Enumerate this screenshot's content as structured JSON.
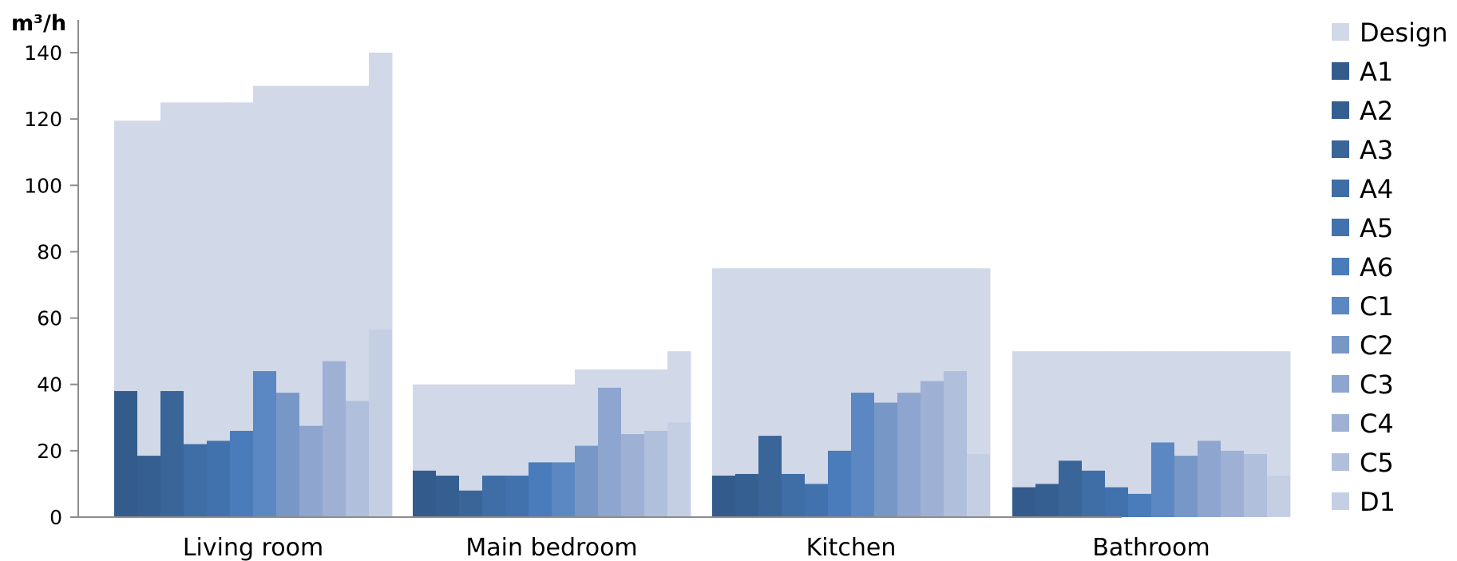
{
  "chart_data": {
    "type": "bar",
    "y_unit": "m³/h",
    "ylim": [
      0,
      140
    ],
    "yticks": [
      "0",
      "20",
      "40",
      "60",
      "80",
      "100",
      "120",
      "140"
    ],
    "grid": false,
    "legend_position": "right",
    "categories": [
      "Living room",
      "Main bedroom",
      "Kitchen",
      "Bathroom"
    ],
    "design": {
      "name": "Design",
      "color": "#D1D8E7",
      "values": [
        [
          119.5,
          119.5,
          125,
          125,
          125,
          125,
          130,
          130,
          130,
          130,
          130,
          140
        ],
        [
          40,
          40,
          40,
          40,
          40,
          40,
          40,
          44.5,
          44.5,
          44.5,
          44.5,
          50
        ],
        [
          75,
          75,
          75,
          75,
          75,
          75,
          75,
          75,
          75,
          75,
          75,
          75
        ],
        [
          50,
          50,
          50,
          50,
          50,
          50,
          50,
          50,
          50,
          50,
          50,
          50
        ]
      ]
    },
    "series": [
      {
        "name": "A1",
        "color": "#335C8C",
        "values": [
          38,
          14,
          12.5,
          9
        ]
      },
      {
        "name": "A2",
        "color": "#365F91",
        "values": [
          18.5,
          12.5,
          13,
          10
        ]
      },
      {
        "name": "A3",
        "color": "#396598",
        "values": [
          38,
          8,
          24.5,
          17
        ]
      },
      {
        "name": "A4",
        "color": "#3F6DA6",
        "values": [
          22,
          12.5,
          13,
          14
        ]
      },
      {
        "name": "A5",
        "color": "#4272AD",
        "values": [
          23,
          12.5,
          10,
          9
        ]
      },
      {
        "name": "A6",
        "color": "#4A7BBA",
        "values": [
          26,
          16.5,
          20,
          7
        ]
      },
      {
        "name": "C1",
        "color": "#5B87C2",
        "values": [
          44,
          16.5,
          37.5,
          22.5
        ]
      },
      {
        "name": "C2",
        "color": "#7797C7",
        "values": [
          37.5,
          21.5,
          34.5,
          18.5
        ]
      },
      {
        "name": "C3",
        "color": "#8DA5CF",
        "values": [
          27.5,
          39,
          37.5,
          23
        ]
      },
      {
        "name": "C4",
        "color": "#9EB0D4",
        "values": [
          47,
          25,
          41,
          20
        ]
      },
      {
        "name": "C5",
        "color": "#B0BFDC",
        "values": [
          35,
          26,
          44,
          19
        ]
      },
      {
        "name": "D1",
        "color": "#C5CFE4",
        "values": [
          56.5,
          28.5,
          19,
          12.5
        ]
      }
    ]
  }
}
